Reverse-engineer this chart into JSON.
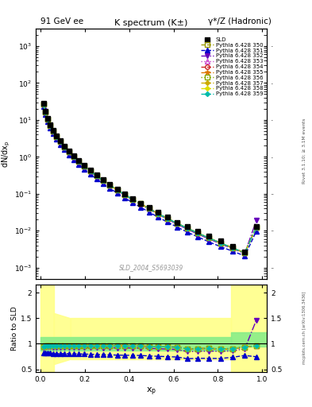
{
  "title_left": "91 GeV ee",
  "title_right": "γ*/Z (Hadronic)",
  "plot_title": "K spectrum (K±)",
  "xlabel": "x_{p}",
  "ylabel_top": "dN/dx_{p}",
  "ylabel_bottom": "Ratio to SLD",
  "watermark": "SLD_2004_S5693039",
  "xp": [
    0.014,
    0.022,
    0.032,
    0.044,
    0.057,
    0.072,
    0.089,
    0.108,
    0.128,
    0.15,
    0.173,
    0.198,
    0.225,
    0.253,
    0.282,
    0.313,
    0.346,
    0.38,
    0.415,
    0.452,
    0.49,
    0.53,
    0.572,
    0.616,
    0.662,
    0.71,
    0.76,
    0.812,
    0.866,
    0.921,
    0.973
  ],
  "series": [
    {
      "label": "SLD",
      "color": "#000000",
      "marker": "s",
      "markersize": 4,
      "linestyle": "none",
      "fillstyle": "full",
      "lw": 0,
      "y": [
        28.0,
        17.0,
        11.0,
        7.5,
        5.2,
        3.7,
        2.7,
        1.95,
        1.42,
        1.05,
        0.78,
        0.58,
        0.43,
        0.32,
        0.24,
        0.18,
        0.135,
        0.1,
        0.075,
        0.056,
        0.042,
        0.031,
        0.023,
        0.017,
        0.013,
        0.0095,
        0.007,
        0.0052,
        0.0038,
        0.0027,
        0.013
      ]
    },
    {
      "label": "Pythia 6.428 350",
      "color": "#999900",
      "marker": "s",
      "markersize": 4,
      "linestyle": "--",
      "fillstyle": "none",
      "lw": 1.0,
      "y": [
        26.5,
        16.2,
        10.6,
        7.2,
        4.97,
        3.53,
        2.58,
        1.87,
        1.36,
        1.005,
        0.745,
        0.555,
        0.412,
        0.306,
        0.229,
        0.172,
        0.129,
        0.0955,
        0.0715,
        0.0535,
        0.0398,
        0.0293,
        0.0216,
        0.0159,
        0.0117,
        0.0086,
        0.00635,
        0.00468,
        0.00344,
        0.00252,
        0.0125
      ]
    },
    {
      "label": "Pythia 6.428 351",
      "color": "#0000CC",
      "marker": "^",
      "markersize": 4,
      "linestyle": "--",
      "fillstyle": "full",
      "lw": 1.0,
      "y": [
        23.0,
        14.0,
        9.1,
        6.15,
        4.22,
        2.99,
        2.18,
        1.575,
        1.145,
        0.845,
        0.625,
        0.463,
        0.342,
        0.253,
        0.189,
        0.141,
        0.105,
        0.0775,
        0.058,
        0.0432,
        0.032,
        0.0234,
        0.0172,
        0.0126,
        0.0092,
        0.0068,
        0.005,
        0.0037,
        0.0028,
        0.00208,
        0.0097
      ]
    },
    {
      "label": "Pythia 6.428 352",
      "color": "#6600BB",
      "marker": "v",
      "markersize": 4,
      "linestyle": "-.",
      "fillstyle": "full",
      "lw": 1.0,
      "y": [
        26.0,
        16.0,
        10.4,
        7.05,
        4.85,
        3.44,
        2.51,
        1.82,
        1.32,
        0.975,
        0.722,
        0.538,
        0.398,
        0.296,
        0.221,
        0.166,
        0.124,
        0.0918,
        0.0687,
        0.0513,
        0.0382,
        0.028,
        0.0206,
        0.0151,
        0.011,
        0.0081,
        0.006,
        0.00443,
        0.00328,
        0.00243,
        0.019
      ]
    },
    {
      "label": "Pythia 6.428 353",
      "color": "#CC44CC",
      "marker": "^",
      "markersize": 4,
      "linestyle": ":",
      "fillstyle": "none",
      "lw": 1.0,
      "y": [
        26.5,
        16.2,
        10.6,
        7.2,
        4.97,
        3.53,
        2.58,
        1.87,
        1.36,
        1.005,
        0.745,
        0.555,
        0.412,
        0.306,
        0.229,
        0.172,
        0.129,
        0.0955,
        0.0715,
        0.0535,
        0.0398,
        0.0293,
        0.0216,
        0.0159,
        0.0117,
        0.0086,
        0.00635,
        0.00468,
        0.00344,
        0.00252,
        0.0125
      ]
    },
    {
      "label": "Pythia 6.428 354",
      "color": "#CC2222",
      "marker": "o",
      "markersize": 4,
      "linestyle": "--",
      "fillstyle": "none",
      "lw": 1.0,
      "y": [
        26.5,
        16.2,
        10.6,
        7.2,
        4.97,
        3.53,
        2.58,
        1.87,
        1.36,
        1.005,
        0.745,
        0.555,
        0.412,
        0.306,
        0.229,
        0.172,
        0.129,
        0.0955,
        0.0715,
        0.0535,
        0.0398,
        0.0293,
        0.0216,
        0.0159,
        0.0117,
        0.0086,
        0.00635,
        0.00468,
        0.00344,
        0.00252,
        0.0125
      ]
    },
    {
      "label": "Pythia 6.428 355",
      "color": "#DD7700",
      "marker": "*",
      "markersize": 5,
      "linestyle": "--",
      "fillstyle": "full",
      "lw": 1.0,
      "y": [
        26.5,
        16.2,
        10.6,
        7.2,
        4.97,
        3.53,
        2.58,
        1.87,
        1.36,
        1.005,
        0.745,
        0.555,
        0.412,
        0.306,
        0.229,
        0.172,
        0.129,
        0.0955,
        0.0715,
        0.0535,
        0.0398,
        0.0293,
        0.0216,
        0.0159,
        0.0117,
        0.0086,
        0.00635,
        0.00468,
        0.00344,
        0.00252,
        0.0125
      ]
    },
    {
      "label": "Pythia 6.428 356",
      "color": "#88AA00",
      "marker": "s",
      "markersize": 4,
      "linestyle": ":",
      "fillstyle": "none",
      "lw": 1.0,
      "y": [
        26.5,
        16.2,
        10.6,
        7.2,
        4.97,
        3.53,
        2.58,
        1.87,
        1.36,
        1.005,
        0.745,
        0.555,
        0.412,
        0.306,
        0.229,
        0.172,
        0.129,
        0.0955,
        0.0715,
        0.0535,
        0.0398,
        0.0293,
        0.0216,
        0.0159,
        0.0117,
        0.0086,
        0.00635,
        0.00468,
        0.00344,
        0.00252,
        0.0125
      ]
    },
    {
      "label": "Pythia 6.428 357",
      "color": "#CCAA00",
      "marker": "D",
      "markersize": 3,
      "linestyle": "--",
      "fillstyle": "full",
      "lw": 1.0,
      "y": [
        26.5,
        16.2,
        10.6,
        7.2,
        4.97,
        3.53,
        2.58,
        1.87,
        1.36,
        1.005,
        0.745,
        0.555,
        0.412,
        0.306,
        0.229,
        0.172,
        0.129,
        0.0955,
        0.0715,
        0.0535,
        0.0398,
        0.0293,
        0.0216,
        0.0159,
        0.0117,
        0.0086,
        0.00635,
        0.00468,
        0.00344,
        0.00252,
        0.0125
      ]
    },
    {
      "label": "Pythia 6.428 358",
      "color": "#DDDD00",
      "marker": "D",
      "markersize": 3,
      "linestyle": "-.",
      "fillstyle": "full",
      "lw": 1.0,
      "y": [
        26.5,
        16.2,
        10.6,
        7.2,
        4.97,
        3.53,
        2.58,
        1.87,
        1.36,
        1.005,
        0.745,
        0.555,
        0.412,
        0.306,
        0.229,
        0.172,
        0.129,
        0.0955,
        0.0715,
        0.0535,
        0.0398,
        0.0293,
        0.0216,
        0.0159,
        0.0117,
        0.0086,
        0.00635,
        0.00468,
        0.00344,
        0.00252,
        0.0125
      ]
    },
    {
      "label": "Pythia 6.428 359",
      "color": "#00BBAA",
      "marker": "D",
      "markersize": 3,
      "linestyle": "-.",
      "fillstyle": "full",
      "lw": 1.0,
      "y": [
        26.5,
        16.2,
        10.6,
        7.2,
        4.97,
        3.53,
        2.58,
        1.87,
        1.36,
        1.005,
        0.745,
        0.555,
        0.412,
        0.306,
        0.229,
        0.172,
        0.129,
        0.0955,
        0.0715,
        0.0535,
        0.0398,
        0.0293,
        0.0216,
        0.0159,
        0.0117,
        0.0086,
        0.00635,
        0.00468,
        0.00344,
        0.00252,
        0.0125
      ]
    }
  ]
}
